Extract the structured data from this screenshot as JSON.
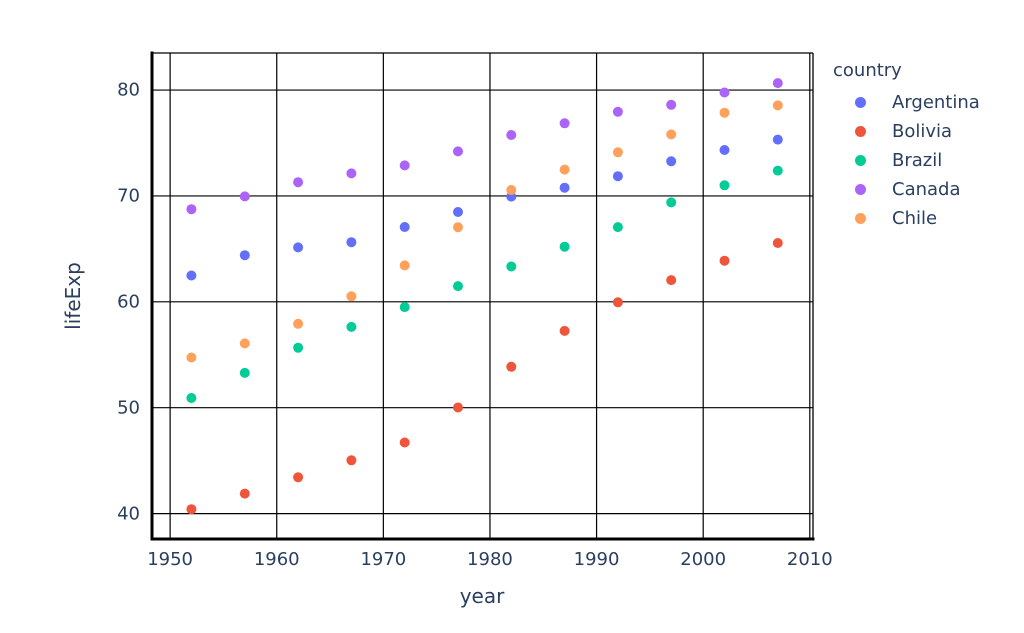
{
  "chart_data": {
    "type": "scatter",
    "title": "",
    "xlabel": "year",
    "ylabel": "lifeExp",
    "legend_title": "country",
    "legend_position": "right",
    "grid": true,
    "x_ticks": [
      1950,
      1960,
      1970,
      1980,
      1990,
      2000,
      2010
    ],
    "y_ticks": [
      40,
      50,
      60,
      70,
      80
    ],
    "x_range": [
      1948.3,
      2010.3
    ],
    "y_range": [
      37.6,
      83.5
    ],
    "x": [
      1952,
      1957,
      1962,
      1967,
      1972,
      1977,
      1982,
      1987,
      1992,
      1997,
      2002,
      2007
    ],
    "series": [
      {
        "name": "Argentina",
        "color": "#636efa",
        "values": [
          62.485,
          64.399,
          65.142,
          65.634,
          67.065,
          68.481,
          69.942,
          70.774,
          71.868,
          73.275,
          74.34,
          75.32
        ]
      },
      {
        "name": "Bolivia",
        "color": "#ef553b",
        "values": [
          40.414,
          41.89,
          43.428,
          45.032,
          46.714,
          50.023,
          53.859,
          57.251,
          59.957,
          62.05,
          63.883,
          65.554
        ]
      },
      {
        "name": "Brazil",
        "color": "#00cc96",
        "values": [
          50.917,
          53.285,
          55.665,
          57.632,
          59.504,
          61.489,
          63.336,
          65.205,
          67.057,
          69.388,
          71.006,
          72.39
        ]
      },
      {
        "name": "Canada",
        "color": "#ab63fa",
        "values": [
          68.75,
          69.96,
          71.3,
          72.13,
          72.88,
          74.21,
          75.76,
          76.86,
          77.95,
          78.61,
          79.77,
          80.653
        ]
      },
      {
        "name": "Chile",
        "color": "#ffa15a",
        "values": [
          54.745,
          56.074,
          57.924,
          60.523,
          63.441,
          67.052,
          70.565,
          72.492,
          74.126,
          75.816,
          77.86,
          78.553
        ]
      }
    ]
  },
  "styles": {
    "text_color": "#2a3f5f",
    "grid_color": "#000000",
    "spine_color": "#000000",
    "background": "#ffffff",
    "marker_radius": 5
  }
}
